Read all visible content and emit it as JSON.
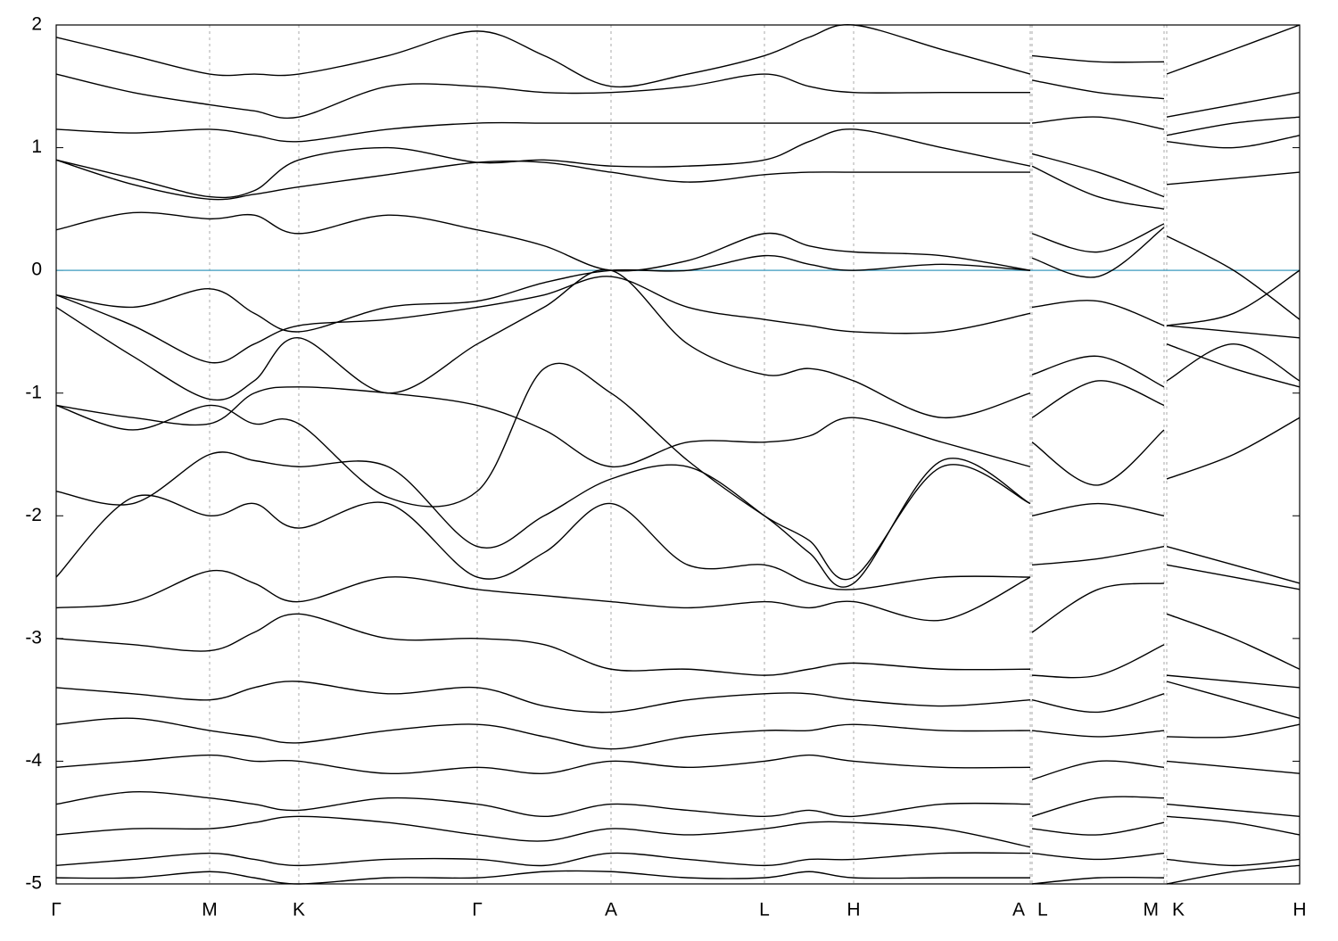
{
  "chart_data": {
    "type": "line",
    "color": "#000000",
    "reference_line": {
      "value": 0,
      "color": "#5aaac8"
    },
    "xlim": [
      0,
      1.394
    ],
    "ylim": [
      -5,
      2
    ],
    "yticks": [
      -5,
      -4,
      -3,
      -2,
      -1,
      0,
      1,
      2
    ],
    "xticks": [
      {
        "value": 0,
        "label": "Γ"
      },
      {
        "value": 0.172,
        "label": "M"
      },
      {
        "value": 0.272,
        "label": "K"
      },
      {
        "value": 0.472,
        "label": "Γ"
      },
      {
        "value": 0.622,
        "label": "A"
      },
      {
        "value": 0.794,
        "label": "L"
      },
      {
        "value": 0.894,
        "label": "H"
      },
      {
        "value": 1.092,
        "label": "A"
      },
      {
        "value": 1.094,
        "label": "L"
      },
      {
        "value": 1.242,
        "label": "M"
      },
      {
        "value": 1.245,
        "label": "K"
      },
      {
        "value": 1.394,
        "label": "H"
      }
    ],
    "grid": true,
    "x": [
      0,
      0.086,
      0.172,
      0.222,
      0.272,
      0.372,
      0.472,
      0.547,
      0.622,
      0.708,
      0.794,
      0.844,
      0.894,
      0.993,
      1.092,
      1.093,
      1.094,
      1.168,
      1.242,
      1.2435,
      1.245,
      1.32,
      1.394
    ],
    "series": [
      {
        "values": [
          1.9,
          1.75,
          1.6,
          1.6,
          1.6,
          1.75,
          1.95,
          1.75,
          1.5,
          1.6,
          1.75,
          1.9,
          2.0,
          1.8,
          1.6,
          null,
          1.75,
          1.7,
          1.7,
          null,
          1.6,
          1.8,
          2.0
        ]
      },
      {
        "values": [
          1.6,
          1.45,
          1.35,
          1.3,
          1.25,
          1.5,
          1.5,
          1.45,
          1.45,
          1.5,
          1.6,
          1.5,
          1.45,
          1.45,
          1.45,
          null,
          1.55,
          1.45,
          1.4,
          null,
          1.25,
          1.35,
          1.45
        ]
      },
      {
        "values": [
          1.15,
          1.12,
          1.15,
          1.1,
          1.05,
          1.15,
          1.2,
          1.2,
          1.2,
          1.2,
          1.2,
          1.2,
          1.2,
          1.2,
          1.2,
          null,
          1.2,
          1.25,
          1.15,
          null,
          1.1,
          1.2,
          1.25
        ]
      },
      {
        "values": [
          0.9,
          0.75,
          0.6,
          0.65,
          0.9,
          1.0,
          0.88,
          0.9,
          0.85,
          0.85,
          0.9,
          1.05,
          1.15,
          1.0,
          0.85,
          null,
          0.95,
          0.8,
          0.6,
          null,
          1.05,
          1.0,
          1.1
        ]
      },
      {
        "values": [
          0.9,
          0.7,
          0.58,
          0.62,
          0.68,
          0.78,
          0.88,
          0.88,
          0.8,
          0.72,
          0.78,
          0.8,
          0.8,
          0.8,
          0.8,
          null,
          0.85,
          0.6,
          0.5,
          null,
          0.7,
          0.75,
          0.8
        ]
      },
      {
        "values": [
          0.33,
          0.47,
          0.42,
          0.45,
          0.3,
          0.45,
          0.33,
          0.2,
          0.0,
          0.08,
          0.3,
          0.2,
          0.15,
          0.12,
          0.0,
          null,
          0.3,
          0.15,
          0.38,
          null,
          0.28,
          0.0,
          -0.4
        ]
      },
      {
        "values": [
          -0.2,
          -0.3,
          -0.15,
          -0.35,
          -0.5,
          -0.3,
          -0.25,
          -0.1,
          0.0,
          0.0,
          0.12,
          0.05,
          0.0,
          0.05,
          0.0,
          null,
          0.1,
          -0.05,
          0.35,
          null,
          -0.45,
          -0.35,
          0.0
        ]
      },
      {
        "values": [
          -0.2,
          -0.45,
          -0.75,
          -0.6,
          -0.45,
          -0.4,
          -0.3,
          -0.2,
          -0.05,
          -0.3,
          -0.4,
          -0.45,
          -0.5,
          -0.5,
          -0.35,
          null,
          -0.3,
          -0.25,
          -0.45,
          null,
          -0.45,
          -0.5,
          -0.55
        ]
      },
      {
        "values": [
          -0.3,
          -0.7,
          -1.05,
          -0.9,
          -0.55,
          -1.0,
          -0.6,
          -0.3,
          0.0,
          -0.6,
          -0.85,
          -0.8,
          -0.9,
          -1.2,
          -1.0,
          null,
          -0.85,
          -0.7,
          -0.95,
          null,
          -0.9,
          -0.6,
          -0.9
        ]
      },
      {
        "values": [
          -1.1,
          -1.2,
          -1.25,
          -1.0,
          -0.95,
          -1.0,
          -1.1,
          -1.3,
          -1.6,
          -1.4,
          -1.4,
          -1.35,
          -1.2,
          -1.4,
          -1.6,
          null,
          -1.2,
          -0.9,
          -1.1,
          null,
          -0.6,
          -0.8,
          -0.95
        ]
      },
      {
        "values": [
          -1.1,
          -1.3,
          -1.1,
          -1.25,
          -1.25,
          -1.85,
          -1.8,
          -0.8,
          -1.0,
          -1.55,
          -2.0,
          -2.2,
          -2.5,
          -1.6,
          -1.9,
          null,
          -1.4,
          -1.75,
          -1.3,
          null,
          -1.7,
          -1.5,
          -1.2
        ]
      },
      {
        "values": [
          -1.8,
          -1.9,
          -1.5,
          -1.55,
          -1.6,
          -1.6,
          -2.25,
          -2.0,
          -1.7,
          -1.6,
          -2.0,
          -2.3,
          -2.55,
          -1.55,
          -1.9,
          null,
          -2.0,
          -1.9,
          -2.0,
          null,
          -2.25,
          -2.4,
          -2.55
        ]
      },
      {
        "values": [
          -2.5,
          -1.85,
          -2.0,
          -1.9,
          -2.1,
          -1.9,
          -2.5,
          -2.3,
          -1.9,
          -2.4,
          -2.4,
          -2.55,
          -2.6,
          -2.5,
          -2.5,
          null,
          -2.4,
          -2.35,
          -2.25,
          null,
          -2.4,
          -2.5,
          -2.6
        ]
      },
      {
        "values": [
          -2.75,
          -2.7,
          -2.45,
          -2.55,
          -2.7,
          -2.5,
          -2.6,
          -2.65,
          -2.7,
          -2.75,
          -2.7,
          -2.75,
          -2.7,
          -2.85,
          -2.5,
          null,
          -2.95,
          -2.6,
          -2.55,
          null,
          -2.8,
          -3.0,
          -3.25
        ]
      },
      {
        "values": [
          -3.0,
          -3.05,
          -3.1,
          -2.95,
          -2.8,
          -3.0,
          -3.0,
          -3.05,
          -3.25,
          -3.25,
          -3.3,
          -3.25,
          -3.2,
          -3.25,
          -3.25,
          null,
          -3.3,
          -3.3,
          -3.05,
          null,
          -3.3,
          -3.35,
          -3.4
        ]
      },
      {
        "values": [
          -3.4,
          -3.45,
          -3.5,
          -3.4,
          -3.35,
          -3.45,
          -3.4,
          -3.55,
          -3.6,
          -3.5,
          -3.45,
          -3.45,
          -3.5,
          -3.55,
          -3.5,
          null,
          -3.5,
          -3.6,
          -3.45,
          null,
          -3.35,
          -3.5,
          -3.65
        ]
      },
      {
        "values": [
          -3.7,
          -3.65,
          -3.75,
          -3.8,
          -3.85,
          -3.75,
          -3.7,
          -3.8,
          -3.9,
          -3.8,
          -3.75,
          -3.75,
          -3.7,
          -3.75,
          -3.75,
          null,
          -3.75,
          -3.8,
          -3.75,
          null,
          -3.8,
          -3.8,
          -3.7
        ]
      },
      {
        "values": [
          -4.05,
          -4.0,
          -3.95,
          -4.0,
          -4.0,
          -4.1,
          -4.05,
          -4.1,
          -4.0,
          -4.05,
          -4.0,
          -3.95,
          -4.0,
          -4.05,
          -4.05,
          null,
          -4.15,
          -4.0,
          -4.05,
          null,
          -4.0,
          -4.05,
          -4.1
        ]
      },
      {
        "values": [
          -4.35,
          -4.25,
          -4.3,
          -4.35,
          -4.4,
          -4.3,
          -4.35,
          -4.45,
          -4.35,
          -4.4,
          -4.45,
          -4.4,
          -4.45,
          -4.35,
          -4.35,
          null,
          -4.45,
          -4.3,
          -4.3,
          null,
          -4.35,
          -4.4,
          -4.45
        ]
      },
      {
        "values": [
          -4.6,
          -4.55,
          -4.55,
          -4.5,
          -4.45,
          -4.5,
          -4.6,
          -4.65,
          -4.55,
          -4.6,
          -4.55,
          -4.5,
          -4.5,
          -4.55,
          -4.7,
          null,
          -4.55,
          -4.6,
          -4.5,
          null,
          -4.45,
          -4.5,
          -4.6
        ]
      },
      {
        "values": [
          -4.85,
          -4.8,
          -4.75,
          -4.8,
          -4.85,
          -4.8,
          -4.8,
          -4.85,
          -4.75,
          -4.8,
          -4.85,
          -4.8,
          -4.8,
          -4.75,
          -4.75,
          null,
          -4.75,
          -4.8,
          -4.75,
          null,
          -4.8,
          -4.85,
          -4.8
        ]
      },
      {
        "values": [
          -4.95,
          -4.95,
          -4.9,
          -4.95,
          -5.0,
          -4.95,
          -4.95,
          -4.9,
          -4.9,
          -4.95,
          -4.95,
          -4.9,
          -4.95,
          -4.95,
          -4.95,
          null,
          -5.0,
          -4.95,
          -4.95,
          null,
          -5.0,
          -4.9,
          -4.85
        ]
      }
    ]
  }
}
